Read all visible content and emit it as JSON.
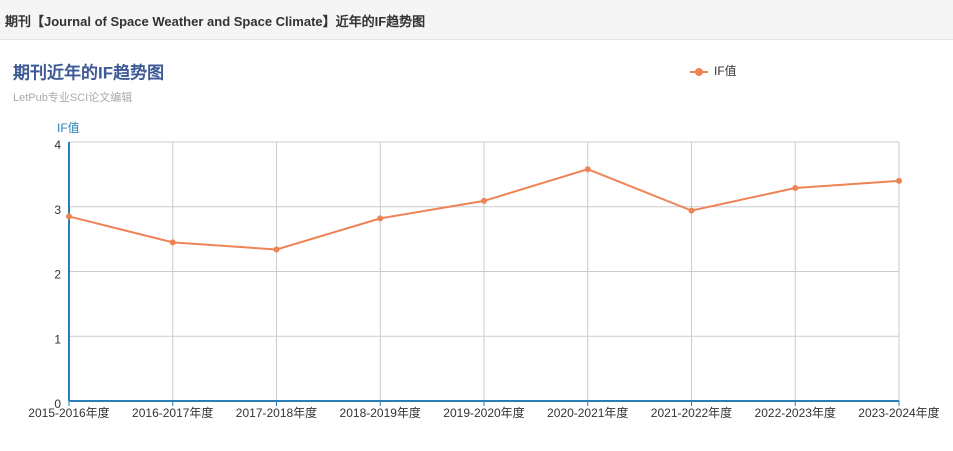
{
  "header": {
    "title": "期刊【Journal of Space Weather and Space Climate】近年的IF趋势图"
  },
  "chart_data": {
    "type": "line",
    "title": "期刊近年的IF趋势图",
    "subtitle": "LetPub专业SCI论文编辑",
    "y_label": "IF值",
    "categories": [
      "2015-2016年度",
      "2016-2017年度",
      "2017-2018年度",
      "2018-2019年度",
      "2019-2020年度",
      "2020-2021年度",
      "2021-2022年度",
      "2022-2023年度",
      "2023-2024年度"
    ],
    "series": [
      {
        "name": "IF值",
        "color": "#ee8355",
        "values": [
          2.85,
          2.45,
          2.34,
          2.82,
          3.09,
          3.58,
          2.94,
          3.29,
          3.4
        ]
      }
    ],
    "ylim": [
      0,
      4
    ],
    "yticks": [
      0,
      1,
      2,
      3,
      4
    ],
    "grid": true,
    "legend": "top-right"
  }
}
